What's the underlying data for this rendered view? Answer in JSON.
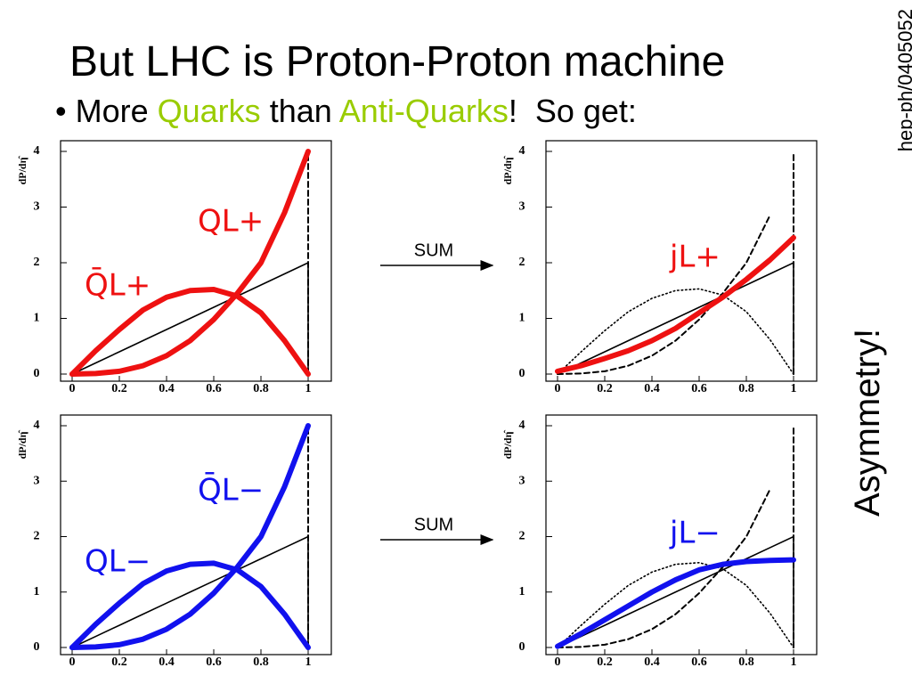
{
  "slide": {
    "title": "But LHC is Proton-Proton machine",
    "bullet": [
      "More ",
      "Quarks",
      " than ",
      "Anti-Quarks",
      "!  So get:"
    ],
    "side_note": "hep-ph/0405052",
    "side_text": "Asymmetry!",
    "sum_labels": [
      "SUM",
      "SUM"
    ]
  },
  "chart_data": [
    {
      "type": "line",
      "ylabel": "dP/dη̂",
      "x": [
        0,
        0.1,
        0.2,
        0.3,
        0.4,
        0.5,
        0.6,
        0.7,
        0.8,
        0.9,
        1
      ],
      "xlim": [
        0,
        1
      ],
      "ylim": [
        0,
        4
      ],
      "xticks": [
        0,
        0.2,
        0.4,
        0.6,
        0.8,
        1
      ],
      "yticks": [
        0,
        1,
        2,
        3,
        4
      ],
      "annotations": [
        "QL+",
        "Q̄L+"
      ],
      "annotation_color": "#ee1111",
      "series": [
        {
          "color": "#000000",
          "style": "thin",
          "values": [
            0,
            0.2,
            0.4,
            0.6,
            0.8,
            1.0,
            1.2,
            1.4,
            1.6,
            1.8,
            2.0
          ]
        },
        {
          "color": "#000000",
          "style": "thin",
          "x": [
            1,
            1
          ],
          "values": [
            0,
            2
          ]
        },
        {
          "color": "#000000",
          "style": "dashed",
          "x": [
            1,
            1
          ],
          "values": [
            0,
            4
          ]
        },
        {
          "color": "#ee1111",
          "style": "thick",
          "values": [
            0,
            0.01,
            0.05,
            0.15,
            0.33,
            0.6,
            0.98,
            1.45,
            2.0,
            2.9,
            4.0
          ]
        },
        {
          "color": "#ee1111",
          "style": "thick",
          "values": [
            0,
            0.42,
            0.8,
            1.15,
            1.38,
            1.5,
            1.52,
            1.4,
            1.1,
            0.6,
            0
          ]
        }
      ]
    },
    {
      "type": "line",
      "ylabel": "dP/dη̂",
      "x": [
        0,
        0.1,
        0.2,
        0.3,
        0.4,
        0.5,
        0.6,
        0.7,
        0.8,
        0.9,
        1
      ],
      "xlim": [
        0,
        1
      ],
      "ylim": [
        0,
        4
      ],
      "xticks": [
        0,
        0.2,
        0.4,
        0.6,
        0.8,
        1
      ],
      "yticks": [
        0,
        1,
        2,
        3,
        4
      ],
      "annotations": [
        "jL+"
      ],
      "annotation_color": "#ee1111",
      "series": [
        {
          "color": "#000000",
          "style": "thin",
          "values": [
            0,
            0.2,
            0.4,
            0.6,
            0.8,
            1.0,
            1.2,
            1.4,
            1.6,
            1.8,
            2.0
          ]
        },
        {
          "color": "#000000",
          "style": "thin",
          "x": [
            1,
            1
          ],
          "values": [
            0,
            2
          ]
        },
        {
          "color": "#000000",
          "style": "dashed",
          "x": [
            1,
            1
          ],
          "values": [
            0,
            4
          ]
        },
        {
          "color": "#000000",
          "style": "dashed",
          "values": [
            0,
            0.01,
            0.05,
            0.15,
            0.33,
            0.6,
            0.98,
            1.45,
            2.0,
            2.85,
            null
          ]
        },
        {
          "color": "#000000",
          "style": "dotted",
          "values": [
            0,
            0.4,
            0.78,
            1.12,
            1.36,
            1.5,
            1.53,
            1.42,
            1.12,
            0.62,
            0
          ]
        },
        {
          "color": "#ee1111",
          "style": "thick",
          "values": [
            0.05,
            0.15,
            0.28,
            0.42,
            0.6,
            0.82,
            1.1,
            1.38,
            1.7,
            2.05,
            2.45
          ]
        }
      ]
    },
    {
      "type": "line",
      "ylabel": "dP/dη̂",
      "x": [
        0,
        0.1,
        0.2,
        0.3,
        0.4,
        0.5,
        0.6,
        0.7,
        0.8,
        0.9,
        1
      ],
      "xlim": [
        0,
        1
      ],
      "ylim": [
        0,
        4
      ],
      "xticks": [
        0,
        0.2,
        0.4,
        0.6,
        0.8,
        1
      ],
      "yticks": [
        0,
        1,
        2,
        3,
        4
      ],
      "annotations": [
        "Q̄L−",
        "QL−"
      ],
      "annotation_color": "#1111ee",
      "series": [
        {
          "color": "#000000",
          "style": "thin",
          "values": [
            0,
            0.2,
            0.4,
            0.6,
            0.8,
            1.0,
            1.2,
            1.4,
            1.6,
            1.8,
            2.0
          ]
        },
        {
          "color": "#000000",
          "style": "thin",
          "x": [
            1,
            1
          ],
          "values": [
            0,
            2
          ]
        },
        {
          "color": "#000000",
          "style": "dashed",
          "x": [
            1,
            1
          ],
          "values": [
            0,
            4
          ]
        },
        {
          "color": "#1111ee",
          "style": "thick",
          "values": [
            0,
            0.01,
            0.05,
            0.15,
            0.33,
            0.6,
            0.98,
            1.45,
            2.0,
            2.9,
            4.0
          ]
        },
        {
          "color": "#1111ee",
          "style": "thick",
          "values": [
            0,
            0.42,
            0.8,
            1.15,
            1.38,
            1.5,
            1.52,
            1.4,
            1.1,
            0.6,
            0
          ]
        }
      ]
    },
    {
      "type": "line",
      "ylabel": "dP/dη̂",
      "x": [
        0,
        0.1,
        0.2,
        0.3,
        0.4,
        0.5,
        0.6,
        0.7,
        0.8,
        0.9,
        1
      ],
      "xlim": [
        0,
        1
      ],
      "ylim": [
        0,
        4
      ],
      "xticks": [
        0,
        0.2,
        0.4,
        0.6,
        0.8,
        1
      ],
      "yticks": [
        0,
        1,
        2,
        3,
        4
      ],
      "annotations": [
        "jL−"
      ],
      "annotation_color": "#1111ee",
      "series": [
        {
          "color": "#000000",
          "style": "thin",
          "values": [
            0,
            0.2,
            0.4,
            0.6,
            0.8,
            1.0,
            1.2,
            1.4,
            1.6,
            1.8,
            2.0
          ]
        },
        {
          "color": "#000000",
          "style": "thin",
          "x": [
            1,
            1
          ],
          "values": [
            0,
            2
          ]
        },
        {
          "color": "#000000",
          "style": "dashed",
          "x": [
            1,
            1
          ],
          "values": [
            0,
            4
          ]
        },
        {
          "color": "#000000",
          "style": "dashed",
          "values": [
            0,
            0.01,
            0.05,
            0.15,
            0.33,
            0.6,
            0.98,
            1.45,
            2.0,
            2.85,
            null
          ]
        },
        {
          "color": "#000000",
          "style": "dotted",
          "values": [
            0,
            0.4,
            0.78,
            1.12,
            1.36,
            1.5,
            1.53,
            1.42,
            1.12,
            0.62,
            0
          ]
        },
        {
          "color": "#1111ee",
          "style": "thick",
          "values": [
            0.02,
            0.25,
            0.5,
            0.75,
            1.0,
            1.22,
            1.4,
            1.5,
            1.55,
            1.57,
            1.58
          ]
        }
      ]
    }
  ]
}
